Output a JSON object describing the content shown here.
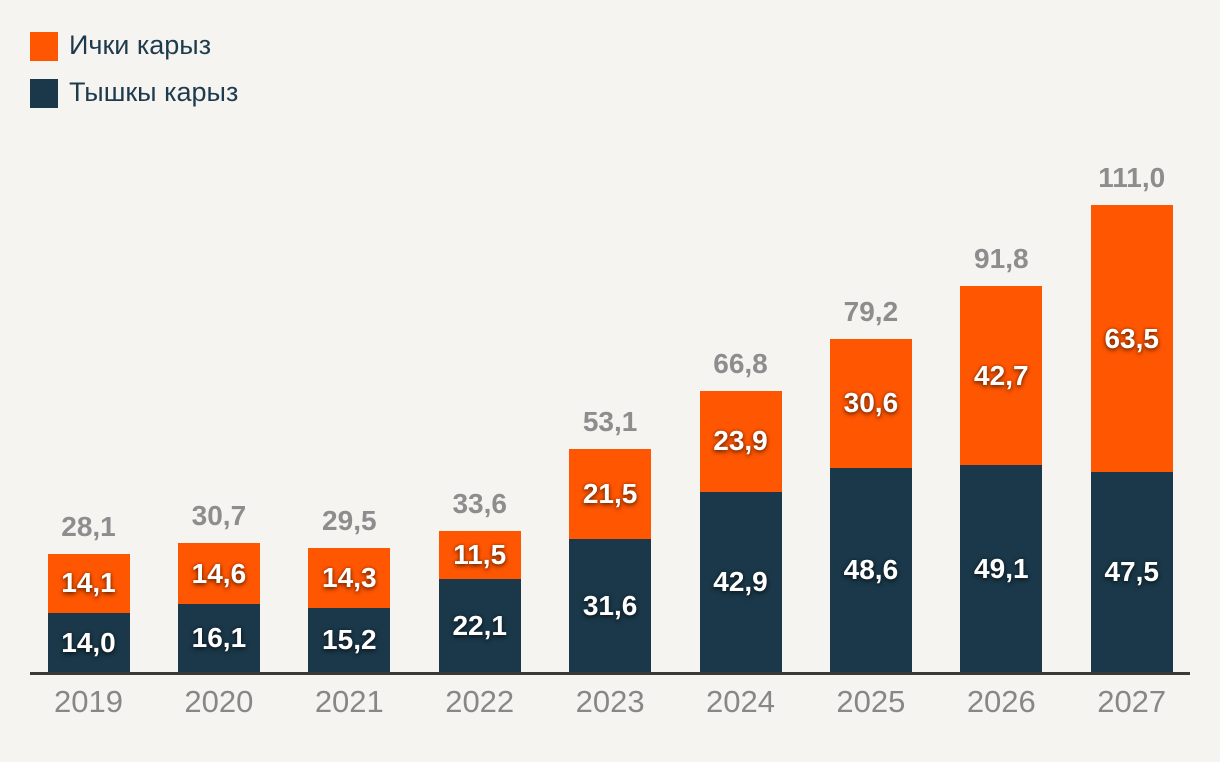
{
  "page": {
    "background_color": "#f5f4f1",
    "axis_color": "#3c3a37"
  },
  "legend": {
    "items": [
      {
        "label": "Ички карыз",
        "color": "#ff5602"
      },
      {
        "label": "Тышкы карыз",
        "color": "#1a3849"
      }
    ]
  },
  "chart_data": {
    "type": "bar",
    "stacked": true,
    "title": "",
    "xlabel": "",
    "ylabel": "",
    "grid": false,
    "legend_position": "top-left",
    "categories": [
      "2019",
      "2020",
      "2021",
      "2022",
      "2023",
      "2024",
      "2025",
      "2026",
      "2027"
    ],
    "series": [
      {
        "name": "Тышкы карыз",
        "color": "#1a3849",
        "values": [
          14.0,
          16.1,
          15.2,
          22.1,
          31.6,
          42.9,
          48.6,
          49.1,
          47.5
        ]
      },
      {
        "name": "Ички карыз",
        "color": "#ff5602",
        "values": [
          14.1,
          14.6,
          14.3,
          11.5,
          21.5,
          23.9,
          30.6,
          42.7,
          63.5
        ]
      }
    ],
    "totals": [
      28.1,
      30.7,
      29.5,
      33.6,
      53.1,
      66.8,
      79.2,
      91.8,
      111.0
    ],
    "value_labels_shown": true,
    "decimal_separator": ",",
    "value_label_color": "#ffffff",
    "total_label_color": "#8d8d8d",
    "category_label_color": "#878787",
    "ylim": [
      0,
      111.0
    ]
  }
}
